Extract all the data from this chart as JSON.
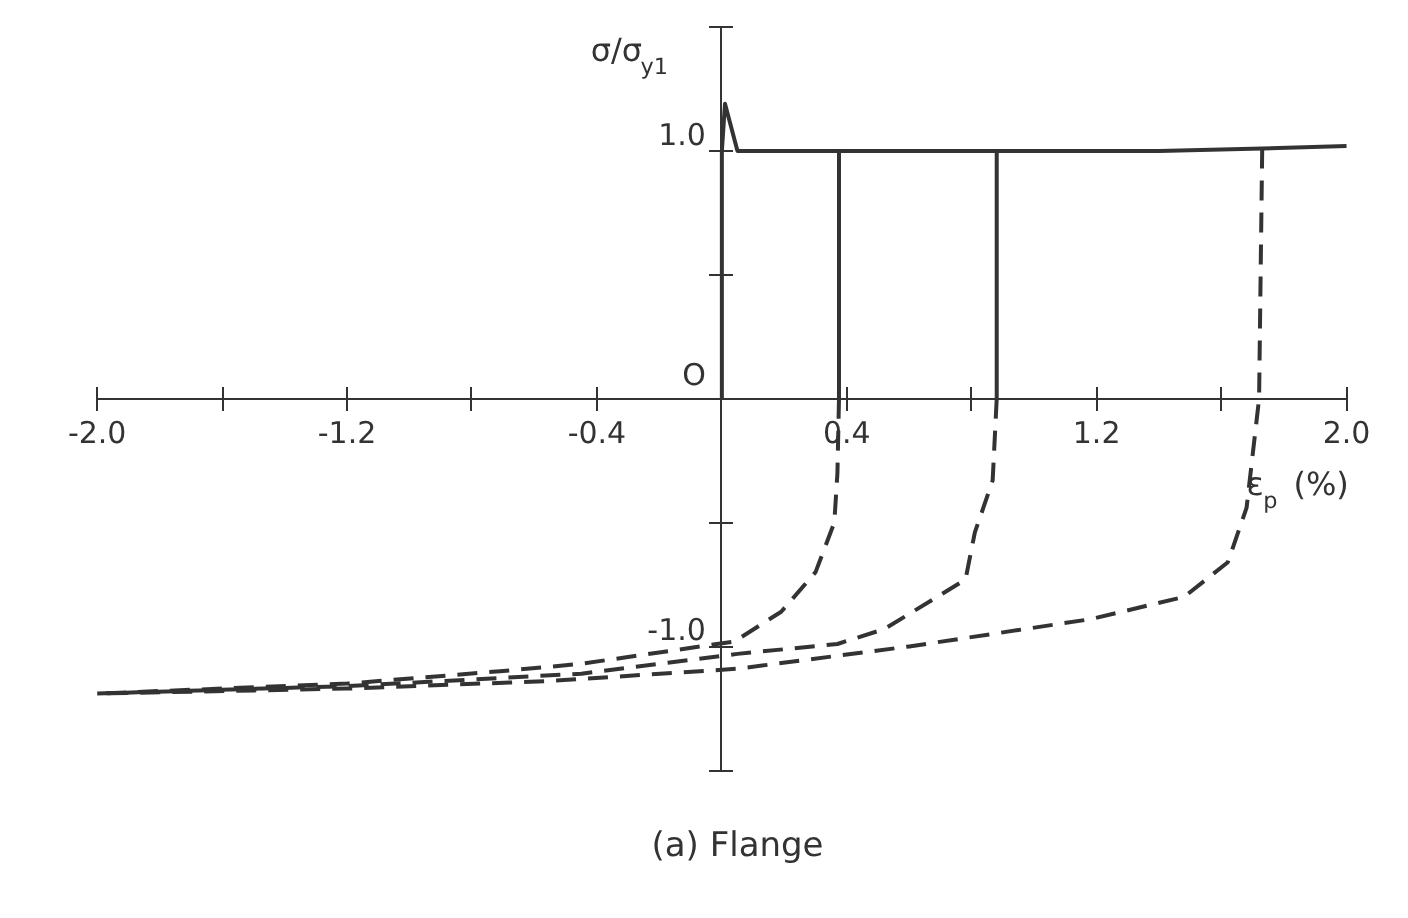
{
  "chart_data": {
    "type": "line",
    "xlabel": "ε$_{p}$ (%)",
    "ylabel": "σ/σ$_{y1}$",
    "annotations": [
      "(a) Flange"
    ],
    "xlim": [
      -2.0,
      2.0
    ],
    "ylim": [
      -1.5,
      1.5
    ],
    "xticks": [
      {
        "value": -2.0,
        "label": "-2.0"
      },
      {
        "value": -1.6,
        "label": null
      },
      -1.2,
      {
        "value": -0.8,
        "label": null
      },
      -0.4,
      {
        "value": 0,
        "label": null
      },
      0.4,
      {
        "value": 0.8,
        "label": null
      },
      1.2,
      {
        "value": 1.6,
        "label": null
      },
      {
        "value": 2.0,
        "label": "2.0"
      }
    ],
    "yticks": [
      {
        "value": -1.5,
        "label": null
      },
      {
        "value": -1.0,
        "label": "-1.0"
      },
      {
        "value": -0.5,
        "label": null
      },
      {
        "value": 0,
        "label": "O"
      },
      {
        "value": 0.5,
        "label": null
      },
      {
        "value": 1.0,
        "label": "1.0"
      },
      {
        "value": 1.5,
        "label": null
      }
    ],
    "grid": false,
    "marker": "none",
    "series": [
      {
        "color": "#333333",
        "line_style": "solid",
        "x": [
          0,
          0,
          0.01,
          0.05,
          0.4,
          0.9,
          1.4,
          1.73,
          2.0
        ],
        "values": [
          0,
          1.0,
          1.19,
          1.0,
          1.0,
          1.0,
          1.0,
          1.01,
          1.02
        ]
      },
      {
        "color": "#333333",
        "line_style": "solid",
        "x": [
          0.375,
          0.375
        ],
        "values": [
          1.0,
          0
        ]
      },
      {
        "color": "#333333",
        "line_style": "dashed",
        "x": [
          0.375,
          0.37,
          0.36,
          0.3,
          0.19,
          0.04,
          -0.45,
          -0.71,
          -1.2,
          -2.0
        ],
        "values": [
          0,
          -0.3,
          -0.5,
          -0.7,
          -0.86,
          -0.98,
          -1.07,
          -1.1,
          -1.15,
          -1.19
        ]
      },
      {
        "color": "#333333",
        "line_style": "solid",
        "x": [
          0.88,
          0.88
        ],
        "values": [
          1.0,
          0
        ]
      },
      {
        "color": "#333333",
        "line_style": "dashed",
        "x": [
          0.88,
          0.867,
          0.81,
          0.78,
          0.52,
          0.37,
          0.05,
          -0.45,
          -1.2,
          -2.0
        ],
        "values": [
          0,
          -0.33,
          -0.54,
          -0.73,
          -0.93,
          -0.99,
          -1.03,
          -1.11,
          -1.16,
          -1.19
        ]
      },
      {
        "color": "#333333",
        "line_style": "dashed",
        "x": [
          1.73,
          1.72,
          1.68,
          1.62,
          1.48,
          1.18,
          0.6,
          0.05,
          -0.56,
          -1.2,
          -2.0
        ],
        "values": [
          1.01,
          0,
          -0.44,
          -0.66,
          -0.8,
          -0.89,
          -1.0,
          -1.09,
          -1.14,
          -1.17,
          -1.19
        ]
      }
    ]
  }
}
